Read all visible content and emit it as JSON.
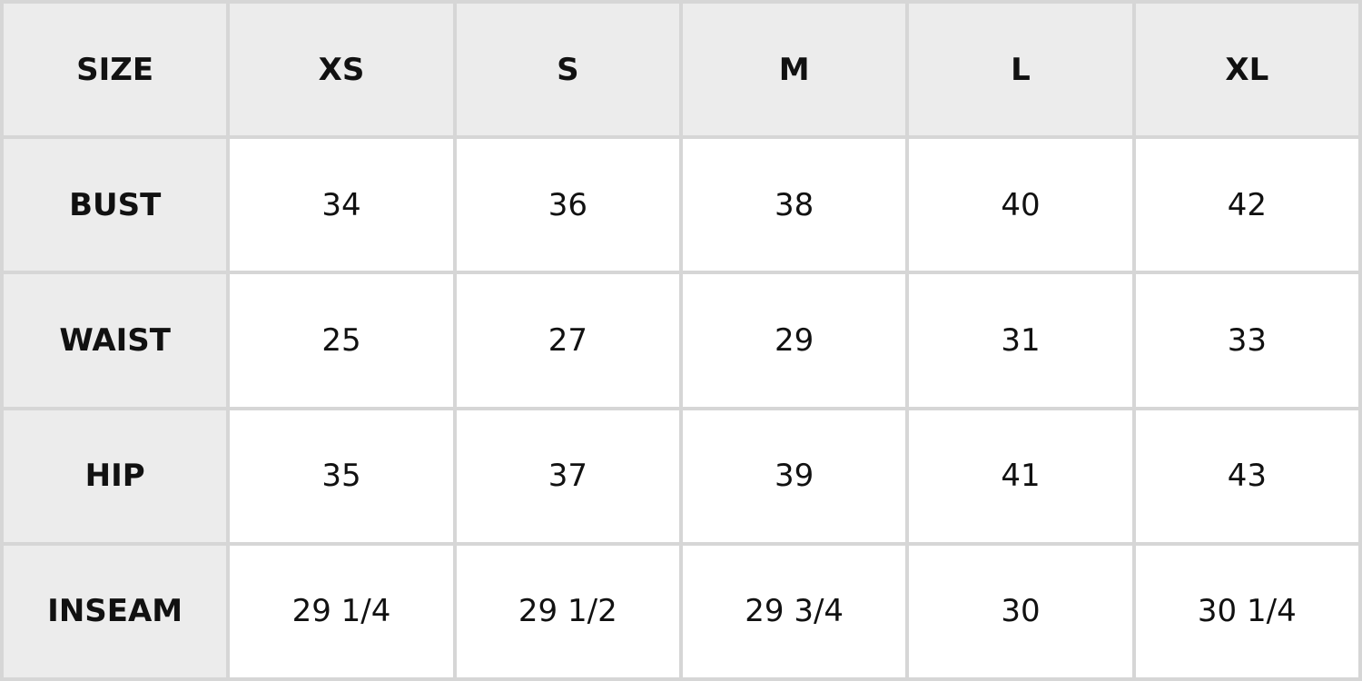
{
  "table": {
    "header": [
      "SIZE",
      "XS",
      "S",
      "M",
      "L",
      "XL"
    ],
    "rows": [
      [
        "BUST",
        "34",
        "36",
        "38",
        "40",
        "42"
      ],
      [
        "WAIST",
        "25",
        "27",
        "29",
        "31",
        "33"
      ],
      [
        "HIP",
        "35",
        "37",
        "39",
        "41",
        "43"
      ],
      [
        "INSEAM",
        "29 1/4",
        "29 1/2",
        "29 3/4",
        "30",
        "30 1/4"
      ]
    ]
  }
}
